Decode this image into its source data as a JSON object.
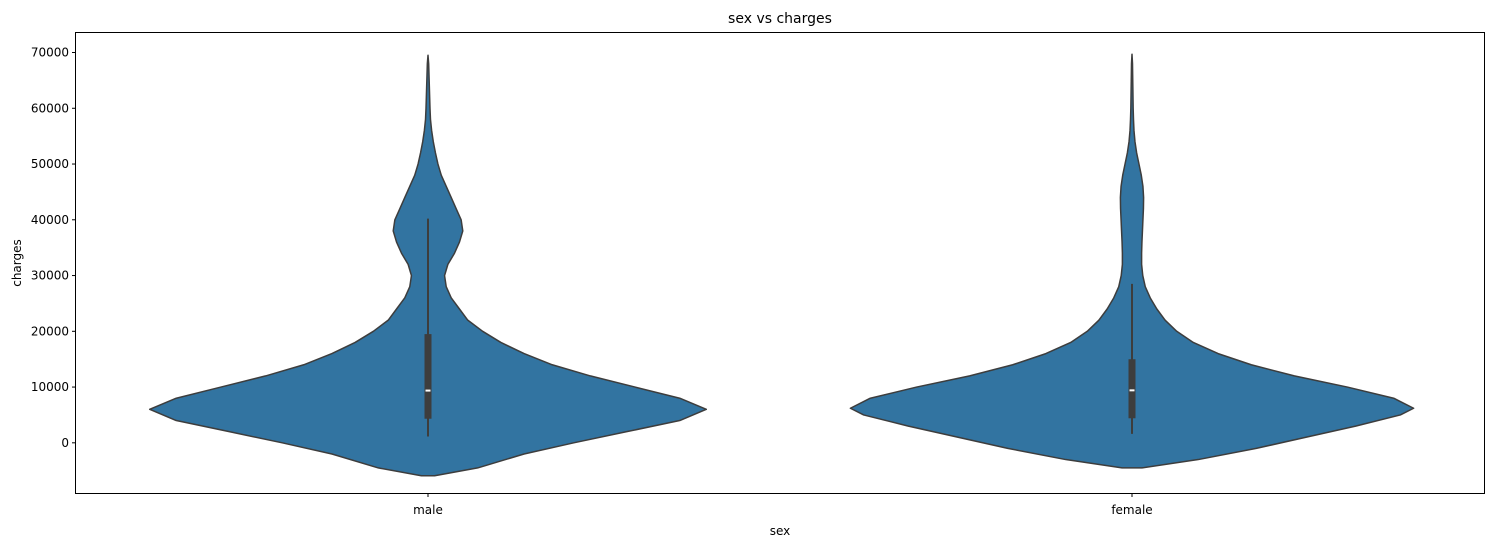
{
  "chart_data": {
    "type": "violin",
    "title": "sex vs charges",
    "xlabel": "sex",
    "ylabel": "charges",
    "categories": [
      "male",
      "female"
    ],
    "ylim": [
      -9000,
      73500
    ],
    "yticks": [
      0,
      10000,
      20000,
      30000,
      40000,
      50000,
      60000,
      70000
    ],
    "grid": false,
    "violin_color": "#3274a1",
    "edge_color": "#3d3d3d",
    "violins": [
      {
        "category": "male",
        "min": 1122,
        "q1": 4320,
        "median": 9370,
        "q3": 19500,
        "max": 40200,
        "extent": [
          -5900,
          69500
        ],
        "density": [
          [
            -5900,
            0.04
          ],
          [
            -4500,
            0.3
          ],
          [
            -2000,
            0.58
          ],
          [
            0,
            0.88
          ],
          [
            2000,
            1.2
          ],
          [
            4000,
            1.52
          ],
          [
            6000,
            1.68
          ],
          [
            8000,
            1.52
          ],
          [
            10000,
            1.25
          ],
          [
            12000,
            0.98
          ],
          [
            14000,
            0.75
          ],
          [
            16000,
            0.58
          ],
          [
            18000,
            0.44
          ],
          [
            20000,
            0.33
          ],
          [
            22000,
            0.24
          ],
          [
            24000,
            0.19
          ],
          [
            26000,
            0.14
          ],
          [
            28000,
            0.11
          ],
          [
            30000,
            0.1
          ],
          [
            32000,
            0.12
          ],
          [
            34000,
            0.16
          ],
          [
            36000,
            0.19
          ],
          [
            38000,
            0.21
          ],
          [
            40000,
            0.2
          ],
          [
            42000,
            0.17
          ],
          [
            44000,
            0.14
          ],
          [
            46000,
            0.11
          ],
          [
            48000,
            0.08
          ],
          [
            50000,
            0.06
          ],
          [
            52000,
            0.045
          ],
          [
            54000,
            0.032
          ],
          [
            56000,
            0.022
          ],
          [
            58000,
            0.015
          ],
          [
            60000,
            0.012
          ],
          [
            62000,
            0.01
          ],
          [
            64000,
            0.008
          ],
          [
            66000,
            0.006
          ],
          [
            68000,
            0.004
          ],
          [
            69500,
            0.0
          ]
        ]
      },
      {
        "category": "female",
        "min": 1607,
        "q1": 4400,
        "median": 9410,
        "q3": 14990,
        "max": 28500,
        "extent": [
          -4500,
          69700
        ],
        "density": [
          [
            -4500,
            0.06
          ],
          [
            -3000,
            0.4
          ],
          [
            -1000,
            0.75
          ],
          [
            1000,
            1.05
          ],
          [
            3000,
            1.35
          ],
          [
            5000,
            1.62
          ],
          [
            6200,
            1.7
          ],
          [
            8000,
            1.58
          ],
          [
            10000,
            1.3
          ],
          [
            12000,
            0.98
          ],
          [
            14000,
            0.72
          ],
          [
            16000,
            0.52
          ],
          [
            18000,
            0.37
          ],
          [
            20000,
            0.27
          ],
          [
            22000,
            0.2
          ],
          [
            24000,
            0.15
          ],
          [
            26000,
            0.11
          ],
          [
            28000,
            0.08
          ],
          [
            30000,
            0.065
          ],
          [
            32000,
            0.058
          ],
          [
            34000,
            0.058
          ],
          [
            36000,
            0.06
          ],
          [
            38000,
            0.063
          ],
          [
            40000,
            0.066
          ],
          [
            42000,
            0.069
          ],
          [
            44000,
            0.07
          ],
          [
            46000,
            0.066
          ],
          [
            48000,
            0.056
          ],
          [
            50000,
            0.042
          ],
          [
            52000,
            0.028
          ],
          [
            54000,
            0.018
          ],
          [
            56000,
            0.012
          ],
          [
            58000,
            0.009
          ],
          [
            60000,
            0.007
          ],
          [
            62000,
            0.006
          ],
          [
            64000,
            0.005
          ],
          [
            66000,
            0.004
          ],
          [
            68000,
            0.003
          ],
          [
            69700,
            0.0
          ]
        ]
      }
    ]
  }
}
